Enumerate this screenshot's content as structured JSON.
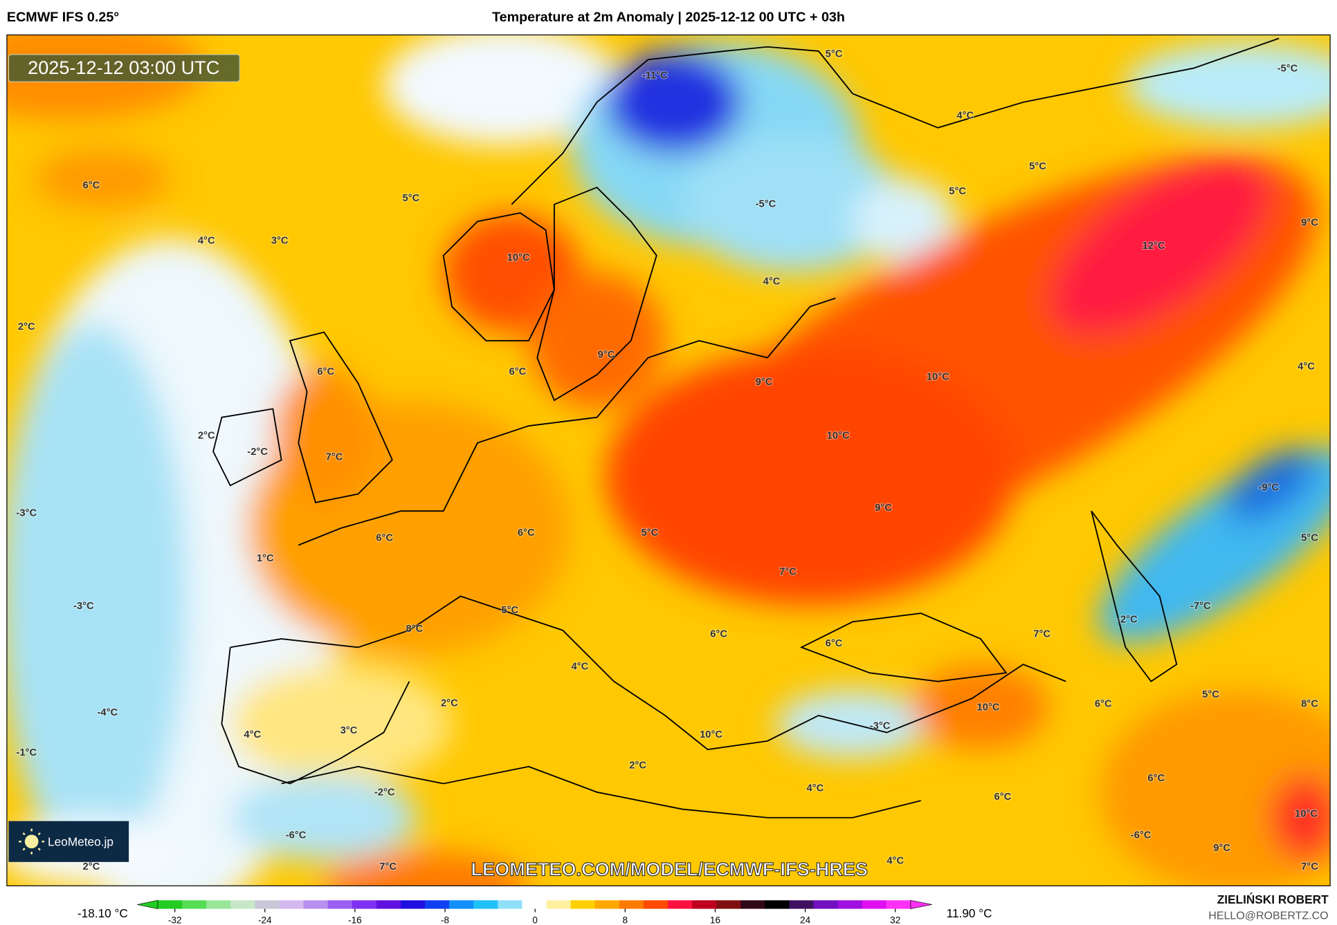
{
  "header": {
    "model": "ECMWF IFS 0.25°",
    "title": "Temperature at 2m Anomaly | 2025-12-12 00 UTC + 03h"
  },
  "map": {
    "valid_time": "2025-12-12 03:00 UTC",
    "watermark_url": "LEOMETEO.COM/MODEL/ECMWF-IFS-HRES",
    "logo_text": "LeoMeteo.jp",
    "labels": [
      "-11°C",
      "5°C",
      "-5°C",
      "4°C",
      "6°C",
      "5°C",
      "5°C",
      "5°C",
      "-5°C",
      "4°C",
      "3°C",
      "10°C",
      "12°C",
      "9°C",
      "4°C",
      "2°C",
      "9°C",
      "6°C",
      "6°C",
      "9°C",
      "10°C",
      "4°C",
      "2°C",
      "-2°C",
      "7°C",
      "10°C",
      "-9°C",
      "-3°C",
      "6°C",
      "6°C",
      "5°C",
      "9°C",
      "5°C",
      "1°C",
      "7°C",
      "-3°C",
      "5°C",
      "-7°C",
      "-2°C",
      "8°C",
      "6°C",
      "6°C",
      "7°C",
      "4°C",
      "-4°C",
      "2°C",
      "10°C",
      "6°C",
      "5°C",
      "8°C",
      "-3°C",
      "4°C",
      "3°C",
      "10°C",
      "-1°C",
      "2°C",
      "4°C",
      "-2°C",
      "6°C",
      "6°C",
      "-6°C",
      "-6°C",
      "10°C",
      "9°C",
      "2°C",
      "7°C",
      "4°C",
      "7°C"
    ]
  },
  "colorbar": {
    "min_label": "-18.10 °C",
    "max_label": "11.90 °C",
    "ticks": [
      "-32",
      "-24",
      "-16",
      "-8",
      "0",
      "8",
      "16",
      "24",
      "32"
    ],
    "range": [
      -32,
      32
    ],
    "colors": [
      "#22cc22",
      "#55dd55",
      "#99e699",
      "#c8e6c8",
      "#c8c8d8",
      "#d6b8f0",
      "#b890f0",
      "#9a60f0",
      "#8030f0",
      "#6010e0",
      "#2010e0",
      "#1040f0",
      "#1090f8",
      "#20c0f8",
      "#90e0f8",
      "#ffffff",
      "#fff0a0",
      "#ffd000",
      "#ffa800",
      "#ff7a00",
      "#ff4a00",
      "#ff1040",
      "#c00020",
      "#801010",
      "#300818",
      "#000000",
      "#401060",
      "#7010c0",
      "#a010e0",
      "#e010f0",
      "#ff30f8"
    ]
  },
  "credits": {
    "author": "ZIELIŃSKI ROBERT",
    "email": "HELLO@ROBERTZ.CO"
  }
}
